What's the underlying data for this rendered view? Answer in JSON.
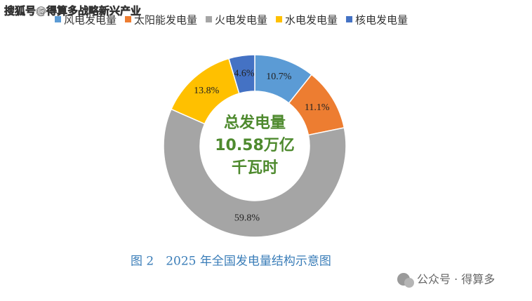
{
  "watermark": "搜狐号@得算多战略新兴产业",
  "chart_data": {
    "type": "donut",
    "categories": [
      "风电发电量",
      "太阳能发电量",
      "火电发电量",
      "水电发电量",
      "核电发电量"
    ],
    "values": [
      10.7,
      11.1,
      59.8,
      13.8,
      4.6
    ],
    "value_labels": [
      "10.7%",
      "11.1%",
      "59.8%",
      "13.8%",
      "4.6%"
    ],
    "colors": [
      "#5b9bd5",
      "#ed7d31",
      "#a5a5a5",
      "#ffc000",
      "#4472c4"
    ],
    "annotations": [
      "总发电量",
      "10.58万亿",
      "千瓦时"
    ],
    "caption": "图 2　2025 年全国发电量结构示意图"
  },
  "footer": "公众号 · 得算多"
}
